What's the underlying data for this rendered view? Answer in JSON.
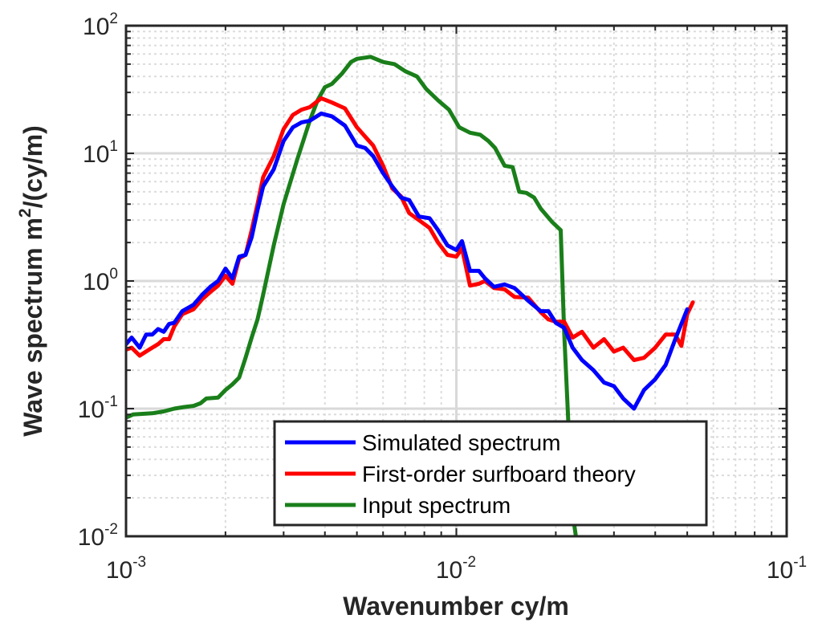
{
  "chart_data": {
    "type": "line",
    "xscale": "log",
    "yscale": "log",
    "xlim": [
      0.001,
      0.1
    ],
    "ylim": [
      0.01,
      100
    ],
    "xlabel": "Wavenumber cy/m",
    "ylabel": {
      "main": "Wave spectrum m",
      "sup": "2",
      "tail": "/(cy/m)"
    },
    "x_ticks": [
      {
        "base": "10",
        "exp": "-3"
      },
      {
        "base": "10",
        "exp": "-2"
      },
      {
        "base": "10",
        "exp": "-1"
      }
    ],
    "y_ticks": [
      {
        "base": "10",
        "exp": "-2"
      },
      {
        "base": "10",
        "exp": "-1"
      },
      {
        "base": "10",
        "exp": "0"
      },
      {
        "base": "10",
        "exp": "1"
      },
      {
        "base": "10",
        "exp": "2"
      }
    ],
    "grid": true,
    "legend_position": "bottom-center",
    "series": [
      {
        "name": "Simulated spectrum",
        "color": "#0000ff",
        "points": [
          [
            0.001,
            0.32
          ],
          [
            0.00104,
            0.36
          ],
          [
            0.0011,
            0.3
          ],
          [
            0.00115,
            0.38
          ],
          [
            0.0012,
            0.38
          ],
          [
            0.00125,
            0.42
          ],
          [
            0.0013,
            0.4
          ],
          [
            0.00135,
            0.46
          ],
          [
            0.0014,
            0.47
          ],
          [
            0.00148,
            0.58
          ],
          [
            0.0016,
            0.65
          ],
          [
            0.0017,
            0.78
          ],
          [
            0.0018,
            0.9
          ],
          [
            0.0019,
            1.0
          ],
          [
            0.002,
            1.25
          ],
          [
            0.0021,
            1.05
          ],
          [
            0.0022,
            1.55
          ],
          [
            0.0023,
            1.6
          ],
          [
            0.0024,
            2.2
          ],
          [
            0.0025,
            3.6
          ],
          [
            0.0026,
            5.5
          ],
          [
            0.0028,
            7.5
          ],
          [
            0.003,
            12.5
          ],
          [
            0.0032,
            16.0
          ],
          [
            0.0034,
            17.5
          ],
          [
            0.0036,
            18.0
          ],
          [
            0.0039,
            20.5
          ],
          [
            0.0042,
            19.5
          ],
          [
            0.0046,
            16.5
          ],
          [
            0.005,
            11.5
          ],
          [
            0.0053,
            11.0
          ],
          [
            0.0056,
            9.5
          ],
          [
            0.006,
            7.0
          ],
          [
            0.0064,
            5.5
          ],
          [
            0.0068,
            4.5
          ],
          [
            0.0072,
            4.3
          ],
          [
            0.0077,
            3.2
          ],
          [
            0.0083,
            3.1
          ],
          [
            0.0088,
            2.5
          ],
          [
            0.0094,
            1.9
          ],
          [
            0.01,
            1.75
          ],
          [
            0.0104,
            2.05
          ],
          [
            0.011,
            1.2
          ],
          [
            0.0117,
            1.2
          ],
          [
            0.0122,
            1.05
          ],
          [
            0.013,
            0.9
          ],
          [
            0.014,
            0.94
          ],
          [
            0.015,
            0.88
          ],
          [
            0.0165,
            0.7
          ],
          [
            0.018,
            0.58
          ],
          [
            0.019,
            0.58
          ],
          [
            0.02,
            0.47
          ],
          [
            0.0212,
            0.43
          ],
          [
            0.0225,
            0.3
          ],
          [
            0.024,
            0.24
          ],
          [
            0.026,
            0.2
          ],
          [
            0.028,
            0.16
          ],
          [
            0.03,
            0.15
          ],
          [
            0.032,
            0.12
          ],
          [
            0.0345,
            0.1
          ],
          [
            0.037,
            0.14
          ],
          [
            0.04,
            0.17
          ],
          [
            0.043,
            0.22
          ],
          [
            0.046,
            0.35
          ],
          [
            0.05,
            0.6
          ]
        ]
      },
      {
        "name": "First-order surfboard theory",
        "color": "#ff0000",
        "points": [
          [
            0.001,
            0.29
          ],
          [
            0.00104,
            0.3
          ],
          [
            0.0011,
            0.26
          ],
          [
            0.00115,
            0.28
          ],
          [
            0.0012,
            0.3
          ],
          [
            0.00125,
            0.32
          ],
          [
            0.0013,
            0.35
          ],
          [
            0.00135,
            0.35
          ],
          [
            0.0014,
            0.44
          ],
          [
            0.00148,
            0.55
          ],
          [
            0.0016,
            0.6
          ],
          [
            0.0017,
            0.72
          ],
          [
            0.0018,
            0.82
          ],
          [
            0.0019,
            0.92
          ],
          [
            0.002,
            1.1
          ],
          [
            0.0021,
            0.95
          ],
          [
            0.0022,
            1.5
          ],
          [
            0.0023,
            1.6
          ],
          [
            0.0024,
            2.5
          ],
          [
            0.0025,
            4.0
          ],
          [
            0.0026,
            6.5
          ],
          [
            0.0028,
            9.5
          ],
          [
            0.003,
            15.5
          ],
          [
            0.0032,
            20.0
          ],
          [
            0.0034,
            22.0
          ],
          [
            0.0036,
            23.0
          ],
          [
            0.0039,
            27.0
          ],
          [
            0.0042,
            25.0
          ],
          [
            0.0046,
            22.5
          ],
          [
            0.005,
            16.0
          ],
          [
            0.0053,
            13.5
          ],
          [
            0.0056,
            11.5
          ],
          [
            0.006,
            8.0
          ],
          [
            0.0064,
            5.3
          ],
          [
            0.0068,
            4.6
          ],
          [
            0.0072,
            3.4
          ],
          [
            0.0077,
            3.0
          ],
          [
            0.0083,
            2.6
          ],
          [
            0.0088,
            2.0
          ],
          [
            0.0094,
            1.6
          ],
          [
            0.01,
            1.55
          ],
          [
            0.0104,
            1.8
          ],
          [
            0.011,
            0.92
          ],
          [
            0.0117,
            0.95
          ],
          [
            0.0122,
            1.0
          ],
          [
            0.013,
            0.88
          ],
          [
            0.014,
            0.86
          ],
          [
            0.015,
            0.75
          ],
          [
            0.0165,
            0.74
          ],
          [
            0.018,
            0.57
          ],
          [
            0.019,
            0.5
          ],
          [
            0.02,
            0.48
          ],
          [
            0.0212,
            0.48
          ],
          [
            0.0225,
            0.36
          ],
          [
            0.024,
            0.4
          ],
          [
            0.026,
            0.3
          ],
          [
            0.028,
            0.35
          ],
          [
            0.03,
            0.28
          ],
          [
            0.032,
            0.3
          ],
          [
            0.0345,
            0.24
          ],
          [
            0.037,
            0.25
          ],
          [
            0.04,
            0.3
          ],
          [
            0.043,
            0.38
          ],
          [
            0.046,
            0.38
          ],
          [
            0.048,
            0.31
          ],
          [
            0.05,
            0.55
          ],
          [
            0.052,
            0.68
          ]
        ]
      },
      {
        "name": "Input spectrum",
        "color": "#1a7f1a",
        "points": [
          [
            0.001,
            0.085
          ],
          [
            0.00105,
            0.09
          ],
          [
            0.0012,
            0.092
          ],
          [
            0.0013,
            0.095
          ],
          [
            0.0014,
            0.1
          ],
          [
            0.0015,
            0.103
          ],
          [
            0.0016,
            0.105
          ],
          [
            0.00168,
            0.11
          ],
          [
            0.00175,
            0.12
          ],
          [
            0.0019,
            0.122
          ],
          [
            0.002,
            0.14
          ],
          [
            0.0021,
            0.155
          ],
          [
            0.0022,
            0.175
          ],
          [
            0.0023,
            0.25
          ],
          [
            0.0024,
            0.36
          ],
          [
            0.0025,
            0.5
          ],
          [
            0.0026,
            0.78
          ],
          [
            0.0028,
            1.9
          ],
          [
            0.003,
            4.0
          ],
          [
            0.0033,
            9.0
          ],
          [
            0.0036,
            18.0
          ],
          [
            0.0038,
            26.0
          ],
          [
            0.004,
            33.0
          ],
          [
            0.0042,
            35.0
          ],
          [
            0.0045,
            42.0
          ],
          [
            0.0048,
            52.0
          ],
          [
            0.005,
            55.0
          ],
          [
            0.0055,
            57.0
          ],
          [
            0.006,
            52.0
          ],
          [
            0.0065,
            50.0
          ],
          [
            0.007,
            44.0
          ],
          [
            0.0076,
            40.0
          ],
          [
            0.0081,
            32.0
          ],
          [
            0.0088,
            26.0
          ],
          [
            0.0095,
            22.0
          ],
          [
            0.0102,
            16.0
          ],
          [
            0.011,
            14.5
          ],
          [
            0.0118,
            14.0
          ],
          [
            0.0125,
            12.5
          ],
          [
            0.0131,
            11.0
          ],
          [
            0.014,
            8.0
          ],
          [
            0.0148,
            7.8
          ],
          [
            0.0155,
            5.0
          ],
          [
            0.0163,
            4.9
          ],
          [
            0.0172,
            4.5
          ],
          [
            0.018,
            3.7
          ],
          [
            0.0195,
            2.9
          ],
          [
            0.0207,
            2.5
          ],
          [
            0.0212,
            0.4
          ],
          [
            0.022,
            0.05
          ],
          [
            0.0225,
            0.015
          ],
          [
            0.023,
            0.01
          ]
        ]
      }
    ]
  }
}
